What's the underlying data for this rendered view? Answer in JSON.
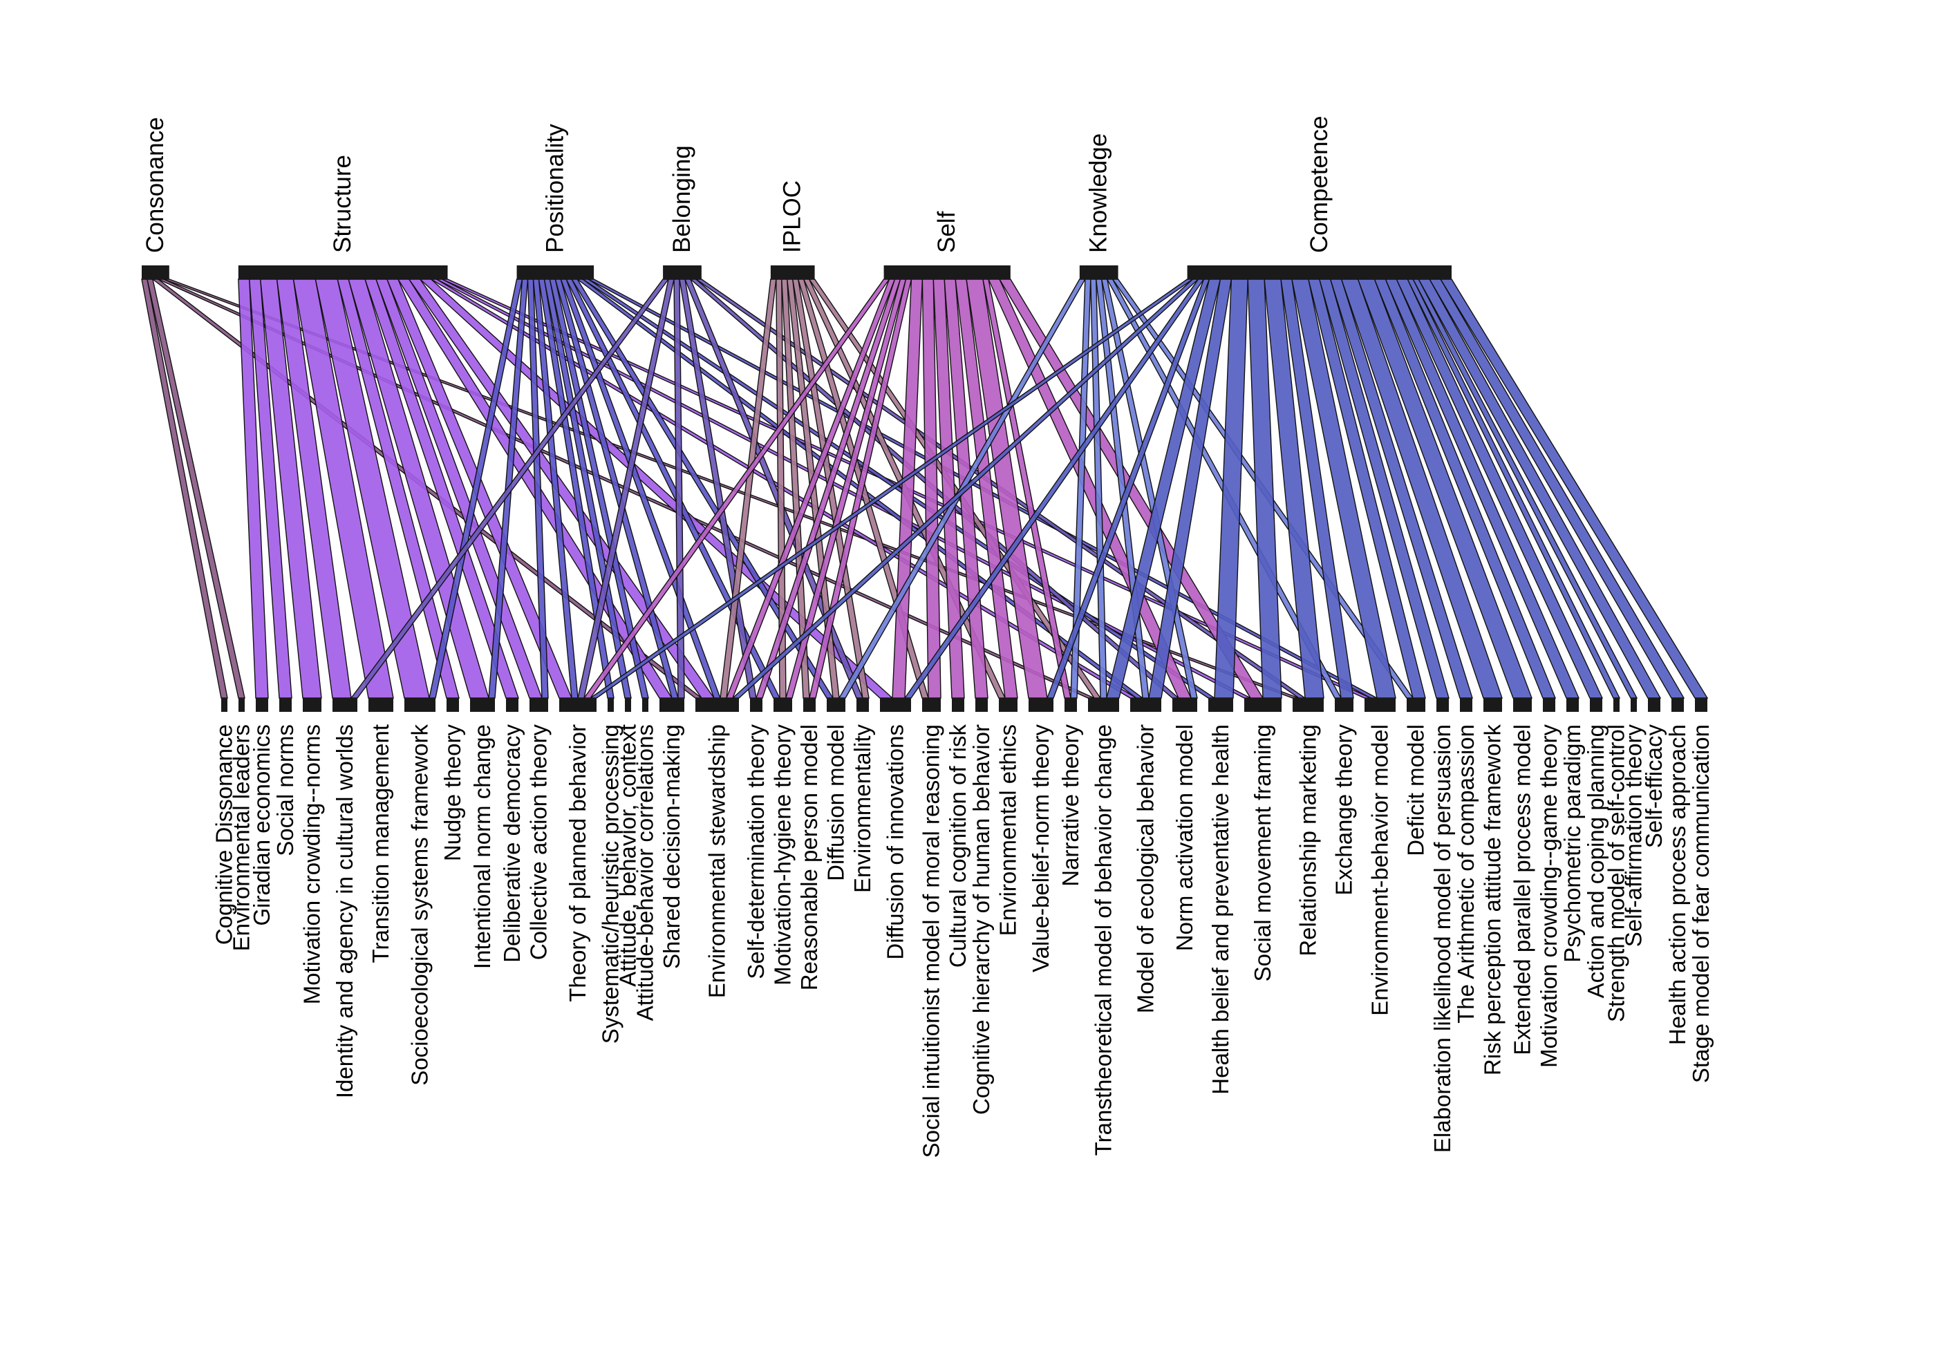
{
  "colors": {
    "background": "#ffffff",
    "node": "#1a1a1a",
    "link_outline": "#111111",
    "top_palette": {
      "Consonance": "#8a5a86",
      "Structure": "#a35ee8",
      "Positionality": "#5b57c8",
      "Belonging": "#6c58b8",
      "IPLOC": "#a77a92",
      "Self": "#b75fc2",
      "Knowledge": "#6f7fd8",
      "Competence": "#5560c2"
    }
  },
  "diagram": {
    "type": "bipartite",
    "top_categories": [
      "Consonance",
      "Structure",
      "Positionality",
      "Belonging",
      "IPLOC",
      "Self",
      "Knowledge",
      "Competence"
    ],
    "bottom_theories": [
      "Cognitive Dissonance",
      "Environmental leaders",
      "Giradian economics",
      "Social norms",
      "Motivation crowding--norms",
      "Identity and agency in cultural worlds",
      "Transition management",
      "Socioecological systems framework",
      "Nudge theory",
      "Intentional norm change",
      "Deliberative democracy",
      "Collective action theory",
      "Theory of planned behavior",
      "Systematic/heuristic processing",
      "Attitude, behavior, context",
      "Attitude-behavior correlations",
      "Shared decision-making",
      "Environmental stewardship",
      "Self-determination theory",
      "Motivation-hygiene theory",
      "Reasonable person model",
      "Diffusion model",
      "Environmentality",
      "Diffusion of innovations",
      "Social intuitionist model of moral reasoning",
      "Cultural cognition of risk",
      "Cognitive hierarchy of human behavior",
      "Environmental ethics",
      "Value-belief-norm theory",
      "Narrative theory",
      "Transtheoretical model of behavior change",
      "Model of ecological behavior",
      "Norm activation model",
      "Health belief and preventative health",
      "Social movement framing",
      "Relationship marketing",
      "Exchange theory",
      "Environment-behavior model",
      "Deficit model",
      "Elaboration likelihood model of persuasion",
      "The Arithmetic of compassion",
      "Risk perception attitude framework",
      "Extended parallel process model",
      "Motivation crowding--game theory",
      "Psychometric paradigm",
      "Action and coping planning",
      "Strength model of self-control",
      "Self-affirmation theory",
      "Self-efficacy",
      "Health action process approach",
      "Stage model of fear communication"
    ],
    "links": [
      {
        "from": "Consonance",
        "to": "Cognitive Dissonance",
        "w": 1
      },
      {
        "from": "Consonance",
        "to": "Environmental leaders",
        "w": 1
      },
      {
        "from": "Consonance",
        "to": "Environmental stewardship",
        "w": 1
      },
      {
        "from": "Consonance",
        "to": "Transtheoretical model of behavior change",
        "w": 1
      },
      {
        "from": "Consonance",
        "to": "Relationship marketing",
        "w": 1
      },
      {
        "from": "Structure",
        "to": "Giradian economics",
        "w": 2
      },
      {
        "from": "Structure",
        "to": "Social norms",
        "w": 2
      },
      {
        "from": "Structure",
        "to": "Motivation crowding--norms",
        "w": 3
      },
      {
        "from": "Structure",
        "to": "Identity and agency in cultural worlds",
        "w": 3
      },
      {
        "from": "Structure",
        "to": "Transition management",
        "w": 4
      },
      {
        "from": "Structure",
        "to": "Socioecological systems framework",
        "w": 4
      },
      {
        "from": "Structure",
        "to": "Nudge theory",
        "w": 2
      },
      {
        "from": "Structure",
        "to": "Intentional norm change",
        "w": 3
      },
      {
        "from": "Structure",
        "to": "Deliberative democracy",
        "w": 2
      },
      {
        "from": "Structure",
        "to": "Collective action theory",
        "w": 2
      },
      {
        "from": "Structure",
        "to": "Theory of planned behavior",
        "w": 2
      },
      {
        "from": "Structure",
        "to": "Shared decision-making",
        "w": 2
      },
      {
        "from": "Structure",
        "to": "Environmental stewardship",
        "w": 2
      },
      {
        "from": "Structure",
        "to": "Diffusion of innovations",
        "w": 2
      },
      {
        "from": "Structure",
        "to": "Model of ecological behavior",
        "w": 1
      },
      {
        "from": "Structure",
        "to": "Social movement framing",
        "w": 1
      },
      {
        "from": "Structure",
        "to": "Environment-behavior model",
        "w": 1
      },
      {
        "from": "Positionality",
        "to": "Socioecological systems framework",
        "w": 1
      },
      {
        "from": "Positionality",
        "to": "Intentional norm change",
        "w": 1
      },
      {
        "from": "Positionality",
        "to": "Collective action theory",
        "w": 1
      },
      {
        "from": "Positionality",
        "to": "Theory of planned behavior",
        "w": 1
      },
      {
        "from": "Positionality",
        "to": "Systematic/heuristic processing",
        "w": 1
      },
      {
        "from": "Positionality",
        "to": "Attitude, behavior, context",
        "w": 1
      },
      {
        "from": "Positionality",
        "to": "Attitude-behavior correlations",
        "w": 1
      },
      {
        "from": "Positionality",
        "to": "Shared decision-making",
        "w": 1
      },
      {
        "from": "Positionality",
        "to": "Environmental stewardship",
        "w": 1
      },
      {
        "from": "Positionality",
        "to": "Motivation-hygiene theory",
        "w": 1
      },
      {
        "from": "Positionality",
        "to": "Diffusion model",
        "w": 1
      },
      {
        "from": "Positionality",
        "to": "Model of ecological behavior",
        "w": 1
      },
      {
        "from": "Positionality",
        "to": "Health belief and preventative health",
        "w": 1
      },
      {
        "from": "Positionality",
        "to": "Environment-behavior model",
        "w": 1
      },
      {
        "from": "Belonging",
        "to": "Identity and agency in cultural worlds",
        "w": 1
      },
      {
        "from": "Belonging",
        "to": "Theory of planned behavior",
        "w": 1
      },
      {
        "from": "Belonging",
        "to": "Shared decision-making",
        "w": 1
      },
      {
        "from": "Belonging",
        "to": "Self-determination theory",
        "w": 1
      },
      {
        "from": "Belonging",
        "to": "Environmentality",
        "w": 1
      },
      {
        "from": "Belonging",
        "to": "Norm activation model",
        "w": 1
      },
      {
        "from": "Belonging",
        "to": "Relationship marketing",
        "w": 1
      },
      {
        "from": "IPLOC",
        "to": "Environmental stewardship",
        "w": 1
      },
      {
        "from": "IPLOC",
        "to": "Motivation-hygiene theory",
        "w": 1
      },
      {
        "from": "IPLOC",
        "to": "Reasonable person model",
        "w": 1
      },
      {
        "from": "IPLOC",
        "to": "Diffusion model",
        "w": 1
      },
      {
        "from": "IPLOC",
        "to": "Environmentality",
        "w": 1
      },
      {
        "from": "IPLOC",
        "to": "Social intuitionist model of moral reasoning",
        "w": 1
      },
      {
        "from": "IPLOC",
        "to": "Environmental ethics",
        "w": 1
      },
      {
        "from": "IPLOC",
        "to": "Transtheoretical model of behavior change",
        "w": 1
      },
      {
        "from": "Self",
        "to": "Theory of planned behavior",
        "w": 1
      },
      {
        "from": "Self",
        "to": "Environmental stewardship",
        "w": 1
      },
      {
        "from": "Self",
        "to": "Self-determination theory",
        "w": 1
      },
      {
        "from": "Self",
        "to": "Motivation-hygiene theory",
        "w": 1
      },
      {
        "from": "Self",
        "to": "Reasonable person model",
        "w": 1
      },
      {
        "from": "Self",
        "to": "Diffusion of innovations",
        "w": 2
      },
      {
        "from": "Self",
        "to": "Social intuitionist model of moral reasoning",
        "w": 2
      },
      {
        "from": "Self",
        "to": "Cultural cognition of risk",
        "w": 2
      },
      {
        "from": "Self",
        "to": "Cognitive hierarchy of human behavior",
        "w": 2
      },
      {
        "from": "Self",
        "to": "Environmental ethics",
        "w": 2
      },
      {
        "from": "Self",
        "to": "Value-belief-norm theory",
        "w": 3
      },
      {
        "from": "Self",
        "to": "Narrative theory",
        "w": 1
      },
      {
        "from": "Self",
        "to": "Norm activation model",
        "w": 2
      },
      {
        "from": "Self",
        "to": "Social movement framing",
        "w": 2
      },
      {
        "from": "Knowledge",
        "to": "Diffusion model",
        "w": 1
      },
      {
        "from": "Knowledge",
        "to": "Narrative theory",
        "w": 1
      },
      {
        "from": "Knowledge",
        "to": "Transtheoretical model of behavior change",
        "w": 1
      },
      {
        "from": "Knowledge",
        "to": "Model of ecological behavior",
        "w": 1
      },
      {
        "from": "Knowledge",
        "to": "Norm activation model",
        "w": 1
      },
      {
        "from": "Knowledge",
        "to": "Exchange theory",
        "w": 1
      },
      {
        "from": "Knowledge",
        "to": "Deficit model",
        "w": 1
      },
      {
        "from": "Competence",
        "to": "Theory of planned behavior",
        "w": 1
      },
      {
        "from": "Competence",
        "to": "Environmental stewardship",
        "w": 1
      },
      {
        "from": "Competence",
        "to": "Diffusion of innovations",
        "w": 1
      },
      {
        "from": "Competence",
        "to": "Value-belief-norm theory",
        "w": 1
      },
      {
        "from": "Competence",
        "to": "Transtheoretical model of behavior change",
        "w": 2
      },
      {
        "from": "Competence",
        "to": "Model of ecological behavior",
        "w": 2
      },
      {
        "from": "Competence",
        "to": "Health belief and preventative health",
        "w": 3
      },
      {
        "from": "Competence",
        "to": "Social movement framing",
        "w": 3
      },
      {
        "from": "Competence",
        "to": "Relationship marketing",
        "w": 3
      },
      {
        "from": "Competence",
        "to": "Exchange theory",
        "w": 2
      },
      {
        "from": "Competence",
        "to": "Environment-behavior model",
        "w": 3
      },
      {
        "from": "Competence",
        "to": "Deficit model",
        "w": 2
      },
      {
        "from": "Competence",
        "to": "Elaboration likelihood model of persuasion",
        "w": 2
      },
      {
        "from": "Competence",
        "to": "The Arithmetic of compassion",
        "w": 2
      },
      {
        "from": "Competence",
        "to": "Risk perception attitude framework",
        "w": 3
      },
      {
        "from": "Competence",
        "to": "Extended parallel process model",
        "w": 3
      },
      {
        "from": "Competence",
        "to": "Motivation crowding--game theory",
        "w": 2
      },
      {
        "from": "Competence",
        "to": "Psychometric paradigm",
        "w": 2
      },
      {
        "from": "Competence",
        "to": "Action and coping planning",
        "w": 2
      },
      {
        "from": "Competence",
        "to": "Strength model of self-control",
        "w": 1
      },
      {
        "from": "Competence",
        "to": "Self-affirmation theory",
        "w": 1
      },
      {
        "from": "Competence",
        "to": "Self-efficacy",
        "w": 2
      },
      {
        "from": "Competence",
        "to": "Health action process approach",
        "w": 2
      },
      {
        "from": "Competence",
        "to": "Stage model of fear communication",
        "w": 2
      }
    ]
  }
}
